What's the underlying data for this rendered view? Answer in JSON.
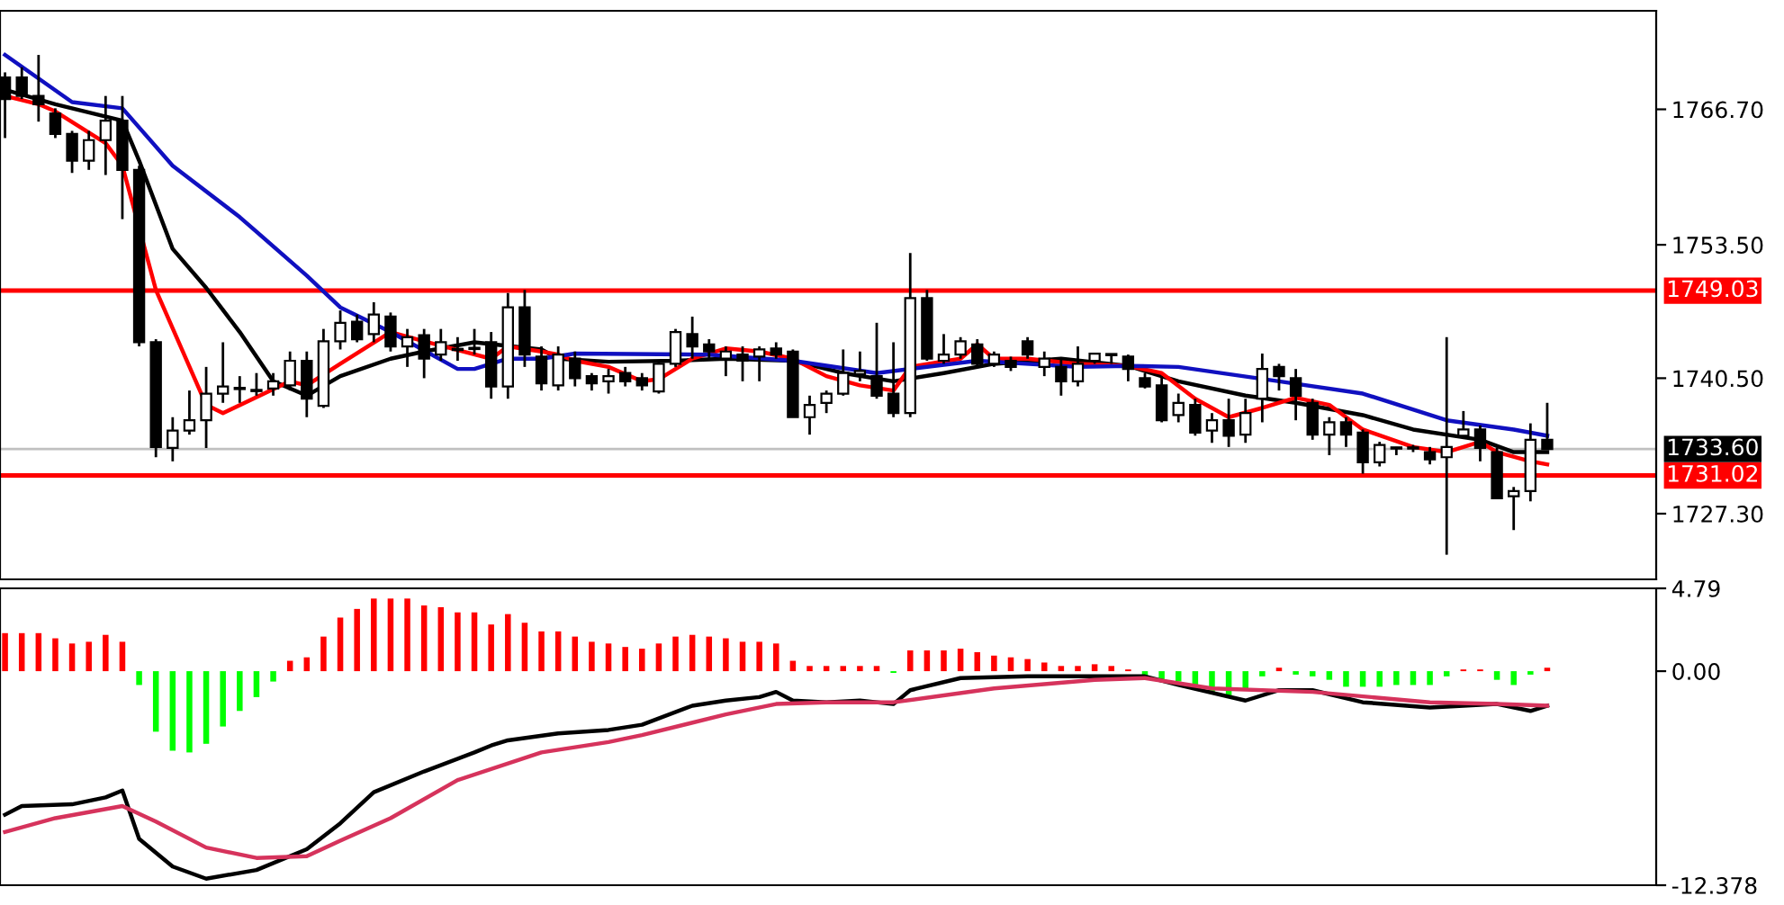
{
  "chart_data": [
    {
      "type": "candlestick",
      "categories": [
        null,
        null,
        null,
        null,
        null,
        null,
        null,
        null,
        null,
        null,
        null,
        null,
        null,
        null,
        null,
        null,
        null,
        null,
        null,
        null,
        null,
        null,
        null,
        null,
        null,
        null,
        null,
        null,
        null,
        null,
        null,
        null,
        null,
        null,
        null,
        null,
        null,
        null,
        null,
        null,
        null,
        null,
        null,
        null,
        null,
        null,
        null,
        null,
        null,
        null,
        null,
        null,
        null,
        null,
        null,
        null,
        null,
        null,
        null,
        null,
        null,
        null,
        null,
        null,
        null,
        null,
        null,
        null,
        null,
        null,
        null,
        null,
        null,
        null,
        null,
        null,
        null,
        null,
        null,
        null,
        null,
        null,
        null,
        null,
        null,
        null,
        null,
        null,
        null,
        null,
        null,
        null,
        null
      ],
      "ohlc": [
        [
          1769.8,
          1770.3,
          1763.9,
          1767.7
        ],
        [
          1769.8,
          1770.8,
          1767.7,
          1768.0
        ],
        [
          1768.0,
          1772.0,
          1765.5,
          1767.2
        ],
        [
          1766.3,
          1766.8,
          1763.9,
          1764.3
        ],
        [
          1764.3,
          1764.6,
          1760.5,
          1761.7
        ],
        [
          1761.7,
          1764.6,
          1760.8,
          1763.7
        ],
        [
          1763.7,
          1768.0,
          1760.3,
          1765.6
        ],
        [
          1765.6,
          1768.0,
          1756.0,
          1760.8
        ],
        [
          1760.8,
          1761.2,
          1743.6,
          1744.0
        ],
        [
          1744.0,
          1744.3,
          1732.8,
          1733.8
        ],
        [
          1733.7,
          1736.7,
          1732.4,
          1735.4
        ],
        [
          1735.4,
          1739.3,
          1735.0,
          1736.4
        ],
        [
          1736.4,
          1741.6,
          1733.7,
          1739.0
        ],
        [
          1739.0,
          1744.0,
          1738.1,
          1739.7
        ],
        [
          1739.5,
          1740.7,
          1738.1,
          1739.5
        ],
        [
          1739.3,
          1741.0,
          1738.8,
          1739.3
        ],
        [
          1739.5,
          1741.0,
          1738.8,
          1740.2
        ],
        [
          1739.8,
          1743.1,
          1739.3,
          1742.2
        ],
        [
          1742.2,
          1743.1,
          1736.7,
          1738.5
        ],
        [
          1737.8,
          1745.3,
          1737.6,
          1744.1
        ],
        [
          1744.1,
          1747.1,
          1743.3,
          1745.9
        ],
        [
          1746.0,
          1746.7,
          1744.0,
          1744.3
        ],
        [
          1744.8,
          1747.9,
          1744.0,
          1746.7
        ],
        [
          1746.5,
          1746.9,
          1743.1,
          1743.6
        ],
        [
          1743.6,
          1745.3,
          1741.6,
          1744.5
        ],
        [
          1744.7,
          1745.3,
          1740.5,
          1742.4
        ],
        [
          1742.8,
          1745.3,
          1742.2,
          1744.0
        ],
        [
          1743.3,
          1744.5,
          1742.2,
          1743.3
        ],
        [
          1743.4,
          1745.3,
          1742.8,
          1743.4
        ],
        [
          1744.0,
          1745.0,
          1738.5,
          1739.7
        ],
        [
          1739.7,
          1748.8,
          1738.5,
          1747.4
        ],
        [
          1747.4,
          1749.1,
          1741.6,
          1742.8
        ],
        [
          1742.6,
          1743.6,
          1739.3,
          1740.0
        ],
        [
          1739.8,
          1743.6,
          1739.3,
          1742.8
        ],
        [
          1742.4,
          1743.1,
          1739.7,
          1740.5
        ],
        [
          1740.7,
          1741.0,
          1739.3,
          1740.0
        ],
        [
          1740.2,
          1741.4,
          1739.0,
          1740.7
        ],
        [
          1741.0,
          1741.6,
          1739.7,
          1740.2
        ],
        [
          1740.5,
          1741.0,
          1739.3,
          1739.8
        ],
        [
          1739.2,
          1742.2,
          1739.0,
          1741.9
        ],
        [
          1741.9,
          1745.3,
          1741.6,
          1745.0
        ],
        [
          1744.8,
          1746.5,
          1742.4,
          1743.6
        ],
        [
          1743.8,
          1744.3,
          1742.4,
          1743.1
        ],
        [
          1742.4,
          1743.6,
          1740.7,
          1743.1
        ],
        [
          1742.8,
          1743.6,
          1740.2,
          1742.2
        ],
        [
          1742.6,
          1743.6,
          1740.2,
          1743.3
        ],
        [
          1743.4,
          1744.0,
          1742.4,
          1742.8
        ],
        [
          1743.1,
          1743.3,
          1736.7,
          1736.7
        ],
        [
          1736.7,
          1738.8,
          1735.0,
          1737.9
        ],
        [
          1738.1,
          1739.3,
          1737.1,
          1739.0
        ],
        [
          1739.0,
          1743.3,
          1738.8,
          1741.0
        ],
        [
          1740.9,
          1743.1,
          1740.2,
          1741.2
        ],
        [
          1740.7,
          1745.9,
          1738.5,
          1738.8
        ],
        [
          1739.0,
          1744.0,
          1736.7,
          1737.1
        ],
        [
          1737.1,
          1752.7,
          1736.7,
          1748.3
        ],
        [
          1748.3,
          1749.1,
          1742.2,
          1742.4
        ],
        [
          1742.2,
          1744.8,
          1741.9,
          1742.8
        ],
        [
          1742.8,
          1744.5,
          1742.4,
          1744.1
        ],
        [
          1743.8,
          1744.3,
          1741.6,
          1741.9
        ],
        [
          1741.9,
          1743.1,
          1741.6,
          1742.8
        ],
        [
          1742.2,
          1742.6,
          1741.2,
          1741.6
        ],
        [
          1744.1,
          1744.5,
          1742.4,
          1742.8
        ],
        [
          1741.6,
          1743.1,
          1740.7,
          1742.4
        ],
        [
          1741.6,
          1742.4,
          1738.8,
          1740.2
        ],
        [
          1740.2,
          1743.6,
          1739.7,
          1741.9
        ],
        [
          1742.2,
          1742.9,
          1741.9,
          1742.9
        ],
        [
          1742.8,
          1742.9,
          1741.9,
          1742.8
        ],
        [
          1742.6,
          1742.8,
          1740.2,
          1741.4
        ],
        [
          1740.5,
          1741.0,
          1739.5,
          1739.7
        ],
        [
          1739.8,
          1740.7,
          1736.2,
          1736.4
        ],
        [
          1736.9,
          1739.0,
          1736.2,
          1738.1
        ],
        [
          1737.9,
          1738.5,
          1734.9,
          1735.2
        ],
        [
          1735.4,
          1737.1,
          1734.2,
          1736.4
        ],
        [
          1736.4,
          1738.5,
          1733.8,
          1734.9
        ],
        [
          1735.0,
          1738.5,
          1734.2,
          1737.1
        ],
        [
          1738.5,
          1742.9,
          1736.2,
          1741.4
        ],
        [
          1741.6,
          1741.9,
          1739.3,
          1740.7
        ],
        [
          1740.5,
          1741.4,
          1736.4,
          1738.8
        ],
        [
          1738.1,
          1738.5,
          1734.5,
          1735.0
        ],
        [
          1735.0,
          1736.7,
          1733.0,
          1736.2
        ],
        [
          1736.2,
          1736.7,
          1733.8,
          1735.0
        ],
        [
          1735.2,
          1735.5,
          1731.2,
          1732.3
        ],
        [
          1732.3,
          1734.3,
          1731.9,
          1734.0
        ],
        [
          1733.7,
          1733.8,
          1733.0,
          1733.7
        ],
        [
          1733.7,
          1734.0,
          1733.3,
          1733.7
        ],
        [
          1733.3,
          1733.8,
          1732.1,
          1732.6
        ],
        [
          1732.8,
          1744.5,
          1723.3,
          1733.8
        ],
        [
          1734.9,
          1737.3,
          1734.7,
          1735.5
        ],
        [
          1735.5,
          1735.9,
          1732.4,
          1733.7
        ],
        [
          1733.3,
          1733.7,
          1728.7,
          1728.8
        ],
        [
          1729.0,
          1729.9,
          1725.7,
          1729.5
        ],
        [
          1729.5,
          1736.1,
          1728.5,
          1734.5
        ],
        [
          1734.5,
          1738.1,
          1733.6,
          1733.6
        ]
      ],
      "series": [
        {
          "type": "line",
          "color": "#000000",
          "values": [
            1768.6,
            null,
            null,
            1767.2,
            null,
            null,
            null,
            1765.6,
            1761.7,
            null,
            1753.1,
            null,
            1749.3,
            null,
            1745.0,
            null,
            1740.2,
            null,
            1738.8,
            null,
            1740.7,
            null,
            null,
            1742.4,
            null,
            1743.1,
            null,
            null,
            1744.0,
            null,
            null,
            null,
            1743.3,
            1742.4,
            null,
            null,
            1742.1,
            null,
            null,
            null,
            1742.2,
            null,
            null,
            1742.4,
            null,
            null,
            null,
            1742.2,
            null,
            null,
            1741.0,
            null,
            null,
            1740.2,
            null,
            null,
            1741.0,
            null,
            null,
            1741.9,
            null,
            null,
            null,
            1742.4,
            null,
            null,
            null,
            1741.7,
            null,
            null,
            1740.2,
            null,
            null,
            null,
            1738.8,
            null,
            null,
            1738.1,
            null,
            null,
            null,
            1736.9,
            null,
            null,
            1735.5,
            null,
            null,
            null,
            1734.5,
            null,
            1733.3,
            null,
            1733.3
          ]
        },
        {
          "type": "line",
          "color": "#ff0000",
          "values": [
            1768.0,
            null,
            1767.2,
            1766.5,
            null,
            null,
            1763.4,
            1761.2,
            null,
            1749.1,
            null,
            null,
            1737.9,
            1737.1,
            null,
            null,
            null,
            1740.2,
            1739.8,
            null,
            1741.9,
            null,
            null,
            1745.0,
            null,
            1744.1,
            null,
            null,
            null,
            1742.4,
            1743.6,
            null,
            1743.1,
            1742.8,
            1742.2,
            null,
            1741.6,
            null,
            1740.2,
            1740.4,
            null,
            1742.4,
            null,
            1743.4,
            null,
            1743.1,
            null,
            1742.4,
            null,
            1740.7,
            null,
            1739.8,
            null,
            1739.3,
            1741.6,
            null,
            null,
            1742.4,
            1743.8,
            1742.4,
            null,
            1742.4,
            null,
            null,
            1741.9,
            null,
            null,
            1741.7,
            null,
            1741.0,
            null,
            1738.5,
            null,
            1736.7,
            null,
            1737.6,
            null,
            1738.6,
            null,
            1737.9,
            null,
            1735.5,
            null,
            null,
            1733.8,
            null,
            1733.3,
            null,
            1734.3,
            1733.3,
            null,
            1732.4,
            1732.1
          ]
        },
        {
          "type": "line",
          "color": "#1010c0",
          "values": [
            1772.0,
            null,
            null,
            null,
            1767.4,
            null,
            null,
            1766.8,
            null,
            null,
            1761.2,
            null,
            null,
            null,
            1756.2,
            null,
            null,
            null,
            1750.5,
            null,
            1747.4,
            null,
            null,
            1745.0,
            null,
            null,
            null,
            1741.4,
            1741.4,
            null,
            1742.4,
            null,
            1742.4,
            null,
            1742.9,
            null,
            null,
            null,
            null,
            null,
            null,
            null,
            1742.8,
            null,
            null,
            null,
            null,
            1742.2,
            null,
            null,
            null,
            null,
            1741.0,
            null,
            null,
            null,
            null,
            null,
            1742.2,
            null,
            null,
            null,
            null,
            null,
            1741.6,
            null,
            null,
            1741.7,
            null,
            null,
            1741.6,
            null,
            null,
            null,
            null,
            null,
            1740.2,
            null,
            null,
            null,
            null,
            1739.0,
            null,
            null,
            null,
            null,
            1736.4,
            null,
            null,
            null,
            1735.5,
            null,
            1734.9
          ]
        }
      ],
      "ylim": [
        1720.9,
        1776.3
      ],
      "yticks": [
        {
          "value": 1766.7,
          "label": "1766.70"
        },
        {
          "value": 1753.5,
          "label": "1753.50"
        },
        {
          "value": 1740.5,
          "label": "1740.50"
        },
        {
          "value": 1727.3,
          "label": "1727.30"
        }
      ],
      "ref_lines": [
        {
          "axis": "y",
          "value": 1749.03,
          "label": "1749.03",
          "color": "#ff0000"
        },
        {
          "axis": "y",
          "value": 1733.6,
          "label": "1733.60",
          "color": "#c0c0c0"
        },
        {
          "axis": "y",
          "value": 1731.02,
          "label": "1731.02",
          "color": "#ff0000"
        }
      ],
      "tick_labels": "y",
      "grid": false,
      "legend": false
    },
    {
      "type": "bar",
      "categories": [
        null,
        null,
        null,
        null,
        null,
        null,
        null,
        null,
        null,
        null,
        null,
        null,
        null,
        null,
        null,
        null,
        null,
        null,
        null,
        null,
        null,
        null,
        null,
        null,
        null,
        null,
        null,
        null,
        null,
        null,
        null,
        null,
        null,
        null,
        null,
        null,
        null,
        null,
        null,
        null,
        null,
        null,
        null,
        null,
        null,
        null,
        null,
        null,
        null,
        null,
        null,
        null,
        null,
        null,
        null,
        null,
        null,
        null,
        null,
        null,
        null,
        null,
        null,
        null,
        null,
        null,
        null,
        null,
        null,
        null,
        null,
        null,
        null,
        null,
        null,
        null,
        null,
        null,
        null,
        null,
        null,
        null,
        null,
        null,
        null,
        null,
        null,
        null,
        null,
        null,
        null,
        null,
        null
      ],
      "values": [
        2.2,
        2.2,
        2.2,
        1.9,
        1.6,
        1.7,
        2.1,
        1.7,
        -0.8,
        -3.5,
        -4.6,
        -4.7,
        -4.2,
        -3.2,
        -2.3,
        -1.5,
        -0.6,
        0.6,
        0.8,
        2.0,
        3.1,
        3.6,
        4.2,
        4.2,
        4.2,
        3.8,
        3.7,
        3.4,
        3.4,
        2.7,
        3.3,
        2.8,
        2.3,
        2.3,
        2.0,
        1.7,
        1.6,
        1.4,
        1.3,
        1.6,
        2.0,
        2.1,
        2.0,
        1.9,
        1.7,
        1.7,
        1.6,
        0.6,
        0.3,
        0.3,
        0.3,
        0.3,
        0.3,
        -0.1,
        1.2,
        1.2,
        1.2,
        1.3,
        1.1,
        0.9,
        0.8,
        0.7,
        0.5,
        0.3,
        0.3,
        0.4,
        0.3,
        0.1,
        -0.3,
        -0.6,
        -0.6,
        -0.8,
        -1.3,
        -1.4,
        -1.1,
        -0.3,
        0.2,
        -0.2,
        -0.3,
        -0.5,
        -0.9,
        -0.9,
        -0.9,
        -0.8,
        -0.8,
        -0.8,
        -0.3,
        0.1,
        0.1,
        -0.5,
        -0.8,
        -0.2,
        0.2
      ],
      "colors": [
        "#ff0000",
        "#ff0000",
        "#ff0000",
        "#ff0000",
        "#ff0000",
        "#ff0000",
        "#ff0000",
        "#ff0000",
        "#00ff00",
        "#00ff00",
        "#00ff00",
        "#00ff00",
        "#00ff00",
        "#00ff00",
        "#00ff00",
        "#00ff00",
        "#00ff00",
        "#ff0000",
        "#ff0000",
        "#ff0000",
        "#ff0000",
        "#ff0000",
        "#ff0000",
        "#ff0000",
        "#ff0000",
        "#ff0000",
        "#ff0000",
        "#ff0000",
        "#ff0000",
        "#ff0000",
        "#ff0000",
        "#ff0000",
        "#ff0000",
        "#ff0000",
        "#ff0000",
        "#ff0000",
        "#ff0000",
        "#ff0000",
        "#ff0000",
        "#ff0000",
        "#ff0000",
        "#ff0000",
        "#ff0000",
        "#ff0000",
        "#ff0000",
        "#ff0000",
        "#ff0000",
        "#ff0000",
        "#ff0000",
        "#ff0000",
        "#ff0000",
        "#ff0000",
        "#ff0000",
        "#00ff00",
        "#ff0000",
        "#ff0000",
        "#ff0000",
        "#ff0000",
        "#ff0000",
        "#ff0000",
        "#ff0000",
        "#ff0000",
        "#ff0000",
        "#ff0000",
        "#ff0000",
        "#ff0000",
        "#ff0000",
        "#ff0000",
        "#00ff00",
        "#00ff00",
        "#00ff00",
        "#00ff00",
        "#00ff00",
        "#00ff00",
        "#00ff00",
        "#00ff00",
        "#ff0000",
        "#00ff00",
        "#00ff00",
        "#00ff00",
        "#00ff00",
        "#00ff00",
        "#00ff00",
        "#00ff00",
        "#00ff00",
        "#00ff00",
        "#00ff00",
        "#ff0000",
        "#ff0000",
        "#00ff00",
        "#00ff00",
        "#00ff00",
        "#ff0000"
      ],
      "series": [
        {
          "type": "line",
          "color": "#000000",
          "values": [
            -8.3,
            -7.8,
            null,
            null,
            -7.7,
            null,
            -7.3,
            -6.9,
            -9.7,
            null,
            -11.3,
            null,
            -12.0,
            null,
            null,
            -11.5,
            null,
            null,
            -10.3,
            null,
            -8.8,
            null,
            -7.0,
            null,
            null,
            -5.8,
            null,
            null,
            -4.7,
            -4.3,
            -4.0,
            null,
            null,
            -3.6,
            null,
            null,
            -3.4,
            null,
            -3.1,
            null,
            null,
            -2.0,
            null,
            -1.7,
            null,
            -1.5,
            -1.2,
            -1.7,
            null,
            -1.8,
            null,
            -1.7,
            null,
            -1.9,
            -1.1,
            null,
            null,
            -0.4,
            null,
            null,
            null,
            -0.3,
            null,
            null,
            null,
            null,
            null,
            -0.3,
            -0.3,
            null,
            -0.8,
            null,
            null,
            null,
            -1.7,
            null,
            -1.1,
            null,
            -1.1,
            null,
            null,
            -1.8,
            null,
            null,
            null,
            -2.1,
            null,
            null,
            null,
            -1.9,
            null,
            -2.3,
            -2.0
          ]
        },
        {
          "type": "line",
          "color": "#d6335c",
          "values": [
            -9.3,
            null,
            null,
            -8.5,
            null,
            null,
            null,
            -7.8,
            null,
            -8.7,
            null,
            null,
            -10.2,
            null,
            null,
            -10.8,
            null,
            null,
            -10.7,
            null,
            -9.8,
            null,
            null,
            -8.5,
            null,
            null,
            null,
            -6.3,
            null,
            null,
            null,
            null,
            -4.7,
            null,
            null,
            null,
            -4.1,
            null,
            -3.7,
            null,
            null,
            null,
            null,
            -2.5,
            null,
            null,
            -1.9,
            null,
            null,
            -1.8,
            null,
            null,
            null,
            -1.8,
            null,
            null,
            null,
            null,
            null,
            -1.0,
            null,
            null,
            null,
            null,
            null,
            -0.5,
            null,
            null,
            -0.4,
            null,
            null,
            null,
            -1.0,
            null,
            null,
            null,
            null,
            null,
            -1.2,
            null,
            null,
            null,
            null,
            null,
            null,
            -1.8,
            null,
            null,
            null,
            -1.9,
            null,
            null,
            -2.0
          ]
        }
      ],
      "ylim": [
        -12.378,
        4.79
      ],
      "yticks": [
        4.79,
        {
          "value": 0,
          "label": "0.00"
        },
        {
          "value": -12.378,
          "label": "-12.378"
        }
      ],
      "tick_labels": "y",
      "grid": false,
      "legend": false
    }
  ]
}
